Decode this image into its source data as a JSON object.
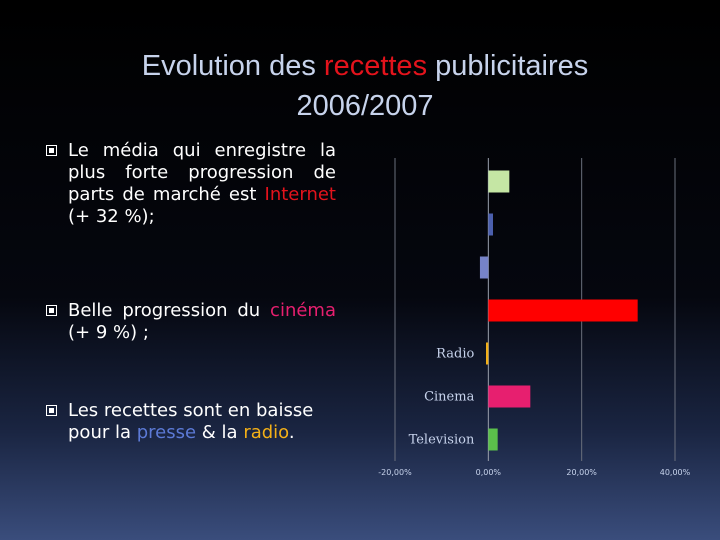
{
  "title": {
    "part1": "Evolution des ",
    "accent": "recettes",
    "part2": " publicitaires",
    "line2": "2006/2007"
  },
  "bullets": [
    {
      "text1": "Le média qui enregistre la plus forte progression de parts de marché est ",
      "highlight": "Internet",
      "text2": " (+ 32 %);"
    },
    {
      "text1": "Belle progression du ",
      "highlight": "cinéma",
      "text2": " (+ 9 %) ;"
    },
    {
      "text1": "Les recettes sont en baisse pour la ",
      "highlight": "presse",
      "text2": " & la ",
      "highlight2": "radio",
      "text3": "."
    }
  ],
  "chart_data": {
    "type": "bar",
    "orientation": "horizontal",
    "categories": [
      "",
      "",
      "",
      "",
      "Radio",
      "Cinema",
      "Television"
    ],
    "values": [
      4.5,
      1.0,
      -1.8,
      32.0,
      -0.5,
      9.0,
      2.0
    ],
    "colors": [
      "#c5e6a4",
      "#4b5fad",
      "#7683c8",
      "#ff0000",
      "#f4b017",
      "#e71f6f",
      "#5bc04b"
    ],
    "xlim": [
      -20,
      40
    ],
    "xticks": [
      -20,
      0,
      20,
      40
    ],
    "xtick_labels": [
      "-20,00%",
      "0,00%",
      "20,00%",
      "40,00%"
    ],
    "grid": true
  }
}
